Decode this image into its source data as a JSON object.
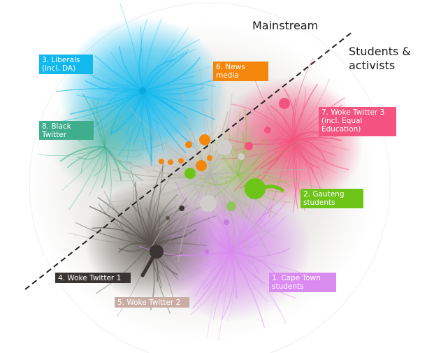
{
  "regions": {
    "mainstream": "Mainstream",
    "students_activists": "Students &\nactivists"
  },
  "clusters": [
    {
      "id": 1,
      "label": "1. Cape Town\nstudents",
      "color": "#d98bf0"
    },
    {
      "id": 2,
      "label": "2. Gauteng\nstudents",
      "color": "#6cc417"
    },
    {
      "id": 3,
      "label": "3. Liberals\n(incl. DA)",
      "color": "#12b9ee"
    },
    {
      "id": 4,
      "label": "4. Woke Twitter 1",
      "color": "#3a3532"
    },
    {
      "id": 5,
      "label": "5. Woke Twitter 2",
      "color": "#c9ada4"
    },
    {
      "id": 6,
      "label": "6. News\nmedia",
      "color": "#f5870c"
    },
    {
      "id": 7,
      "label": "7. Woke Twitter 3\n(incl. Equal\nEducation)",
      "color": "#f3537e"
    },
    {
      "id": 8,
      "label": "8. Black\nTwitter",
      "color": "#3fae8c"
    }
  ]
}
